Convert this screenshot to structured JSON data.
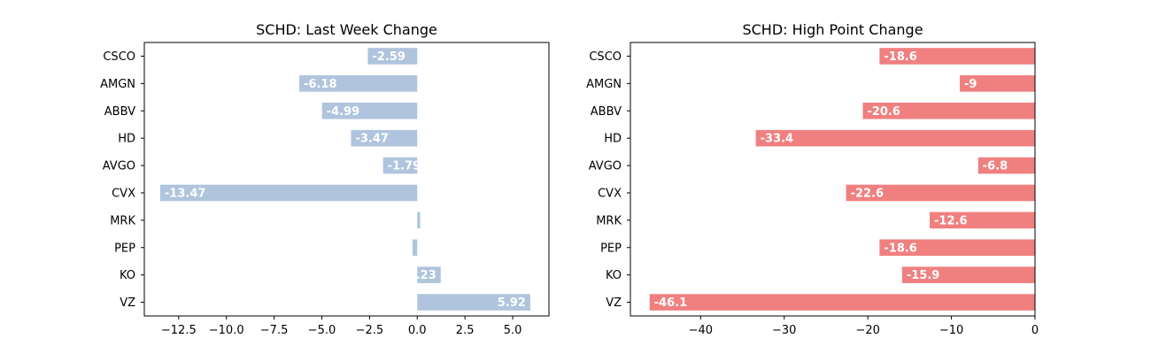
{
  "chart_data": [
    {
      "type": "bar",
      "orientation": "horizontal",
      "title": "SCHD: Last Week Change",
      "categories": [
        "CSCO",
        "AMGN",
        "ABBV",
        "HD",
        "AVGO",
        "CVX",
        "MRK",
        "PEP",
        "KO",
        "VZ"
      ],
      "values": [
        -2.59,
        -6.18,
        -4.99,
        -3.47,
        -1.79,
        -13.47,
        0.15,
        -0.25,
        1.23,
        5.92
      ],
      "data_labels": [
        "-2.59",
        "-6.18",
        "-4.99",
        "-3.47",
        "-1.79",
        "-13.47",
        "",
        "",
        "1.23",
        "5.92"
      ],
      "xlim": [
        -14.3,
        6.9
      ],
      "xticks": [
        -12.5,
        -10.0,
        -7.5,
        -5.0,
        -2.5,
        0.0,
        2.5,
        5.0
      ],
      "xtick_labels": [
        "−12.5",
        "−10.0",
        "−7.5",
        "−5.0",
        "−2.5",
        "0.0",
        "2.5",
        "5.0"
      ],
      "color": "#b0c4de",
      "grid": false
    },
    {
      "type": "bar",
      "orientation": "horizontal",
      "title": "SCHD: High Point Change",
      "categories": [
        "CSCO",
        "AMGN",
        "ABBV",
        "HD",
        "AVGO",
        "CVX",
        "MRK",
        "PEP",
        "KO",
        "VZ"
      ],
      "values": [
        -18.6,
        -9,
        -20.6,
        -33.4,
        -6.8,
        -22.6,
        -12.6,
        -18.6,
        -15.9,
        -46.1
      ],
      "data_labels": [
        "-18.6",
        "-9",
        "-20.6",
        "-33.4",
        "-6.8",
        "-22.6",
        "-12.6",
        "-18.6",
        "-15.9",
        "-46.1"
      ],
      "xlim": [
        -48.4,
        0
      ],
      "xticks": [
        -40,
        -30,
        -20,
        -10,
        0
      ],
      "xtick_labels": [
        "−40",
        "−30",
        "−20",
        "−10",
        "0"
      ],
      "color": "#f08080",
      "grid": false
    }
  ]
}
